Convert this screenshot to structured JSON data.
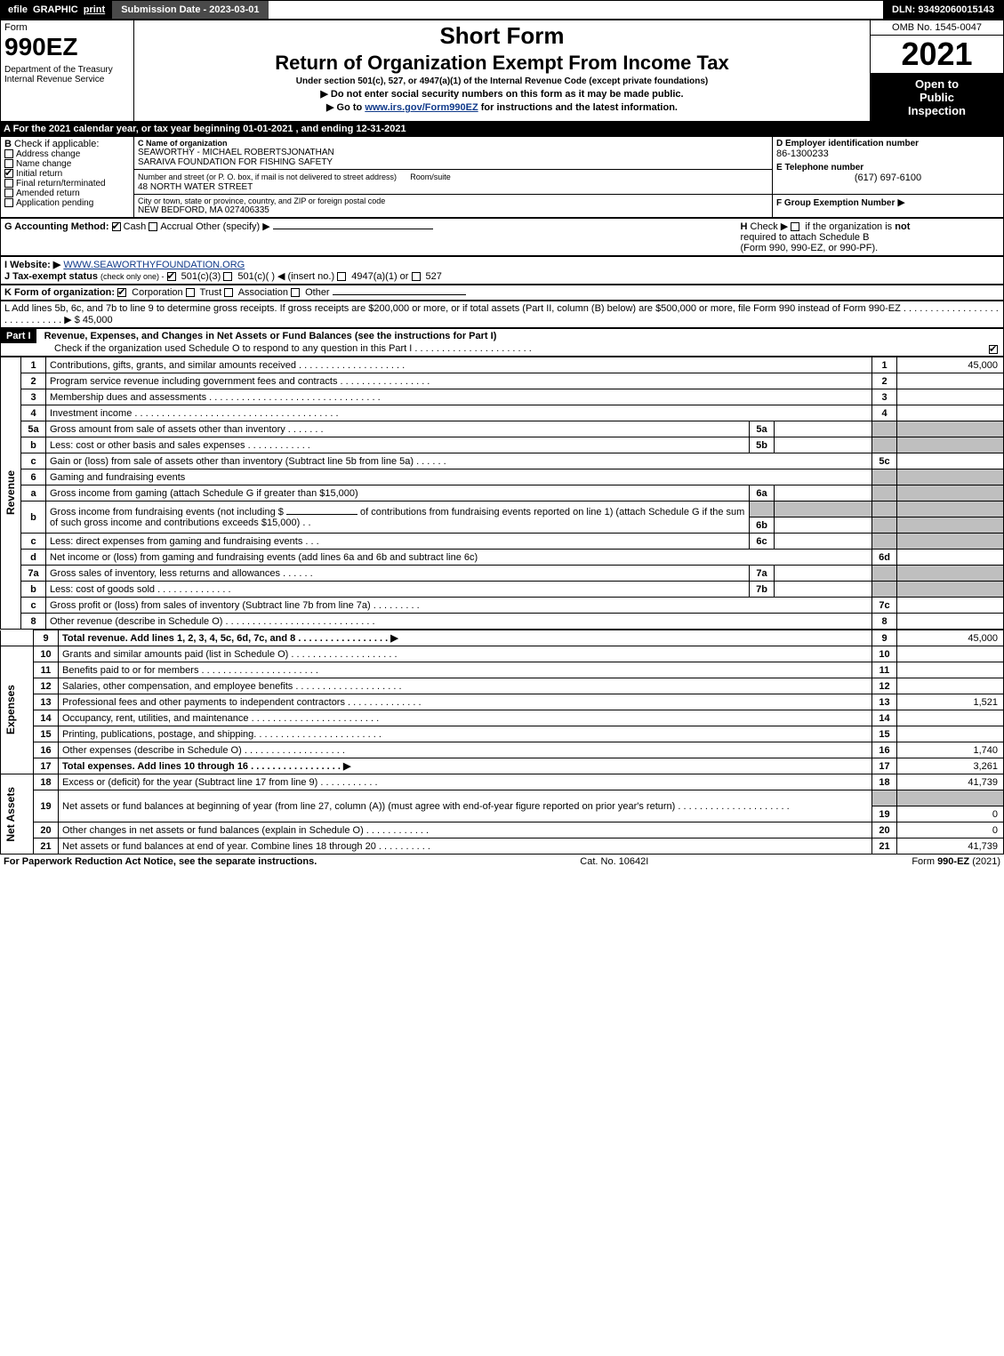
{
  "topbar": {
    "efile": "efile",
    "graphic": "GRAPHIC",
    "print": "print",
    "submission_label": "Submission Date - 2023-03-01",
    "dln": "DLN: 93492060015143"
  },
  "header": {
    "form_word": "Form",
    "form_no": "990EZ",
    "dept": "Department of the Treasury\nInternal Revenue Service",
    "short": "Short Form",
    "return": "Return of Organization Exempt From Income Tax",
    "under": "Under section 501(c), 527, or 4947(a)(1) of the Internal Revenue Code (except private foundations)",
    "inst1": "▶ Do not enter social security numbers on this form as it may be made public.",
    "inst2_pre": "▶ Go to ",
    "inst2_link": "www.irs.gov/Form990EZ",
    "inst2_post": " for instructions and the latest information.",
    "omb": "OMB No. 1545-0047",
    "year": "2021",
    "open1": "Open to",
    "open2": "Public",
    "open3": "Inspection"
  },
  "sectionA": {
    "A_text": "A  For the 2021 calendar year, or tax year beginning 01-01-2021 , and ending 12-31-2021",
    "B_label": "B",
    "B_check": "Check if applicable:",
    "B_items": [
      {
        "label": "Address change",
        "checked": false
      },
      {
        "label": "Name change",
        "checked": false
      },
      {
        "label": "Initial return",
        "checked": true
      },
      {
        "label": "Final return/terminated",
        "checked": false
      },
      {
        "label": "Amended return",
        "checked": false
      },
      {
        "label": "Application pending",
        "checked": false
      }
    ],
    "C_label": "C Name of organization",
    "C_name": "SEAWORTHY - MICHAEL ROBERTSJONATHAN\nSARAIVA FOUNDATION FOR FISHING SAFETY",
    "C_addr_label": "Number and street (or P. O. box, if mail is not delivered to street address)",
    "C_room": "Room/suite",
    "C_addr": "48 NORTH WATER STREET",
    "C_city_label": "City or town, state or province, country, and ZIP or foreign postal code",
    "C_city": "NEW BEDFORD, MA  027406335",
    "D_label": "D Employer identification number",
    "D_val": "86-1300233",
    "E_label": "E Telephone number",
    "E_val": "(617) 697-6100",
    "F_label": "F Group Exemption Number",
    "F_arrow": "▶",
    "G_label": "G Accounting Method:",
    "G_cash": "Cash",
    "G_accrual": "Accrual",
    "G_other": "Other (specify) ▶",
    "H_label": "H",
    "H_text1": "Check ▶",
    "H_text2": "if the organization is",
    "H_not": "not",
    "H_text3": "required to attach Schedule B",
    "H_text4": "(Form 990, 990-EZ, or 990-PF).",
    "I_label": "I Website: ▶",
    "I_val": "WWW.SEAWORTHYFOUNDATION.ORG",
    "J_label": "J Tax-exempt status",
    "J_sub": "(check only one) -",
    "J_items": [
      "501(c)(3)",
      "501(c)(    ) ◀ (insert no.)",
      "4947(a)(1) or",
      "527"
    ],
    "K_label": "K Form of organization:",
    "K_items": [
      "Corporation",
      "Trust",
      "Association",
      "Other"
    ],
    "L_text": "L Add lines 5b, 6c, and 7b to line 9 to determine gross receipts. If gross receipts are $200,000 or more, or if total assets (Part II, column (B) below) are $500,000 or more, file Form 990 instead of Form 990-EZ . . . . . . . . . . . . . . . . . . . . . . . . . . . . . ▶ $ 45,000"
  },
  "partI": {
    "hdr": "Part I",
    "title": "Revenue, Expenses, and Changes in Net Assets or Fund Balances (see the instructions for Part I)",
    "check_text": "Check if the organization used Schedule O to respond to any question in this Part I . . . . . . . . . . . . . . . . . . . . . .",
    "rev_label": "Revenue",
    "exp_label": "Expenses",
    "na_label": "Net Assets",
    "lines": {
      "1": {
        "n": "1",
        "txt": "Contributions, gifts, grants, and similar amounts received . . . . . . . . . . . . . . . . . . . .",
        "rn": "1",
        "val": "45,000"
      },
      "2": {
        "n": "2",
        "txt": "Program service revenue including government fees and contracts . . . . . . . . . . . . . . . . .",
        "rn": "2",
        "val": ""
      },
      "3": {
        "n": "3",
        "txt": "Membership dues and assessments . . . . . . . . . . . . . . . . . . . . . . . . . . . . . . . .",
        "rn": "3",
        "val": ""
      },
      "4": {
        "n": "4",
        "txt": "Investment income . . . . . . . . . . . . . . . . . . . . . . . . . . . . . . . . . . . . . .",
        "rn": "4",
        "val": ""
      },
      "5a": {
        "n": "5a",
        "txt": "Gross amount from sale of assets other than inventory . . . . . . .",
        "box": "5a"
      },
      "5b": {
        "n": "b",
        "txt": "Less: cost or other basis and sales expenses . . . . . . . . . . . .",
        "box": "5b"
      },
      "5c": {
        "n": "c",
        "txt": "Gain or (loss) from sale of assets other than inventory (Subtract line 5b from line 5a) . . . . . .",
        "rn": "5c",
        "val": ""
      },
      "6": {
        "n": "6",
        "txt": "Gaming and fundraising events"
      },
      "6a": {
        "n": "a",
        "txt": "Gross income from gaming (attach Schedule G if greater than $15,000)",
        "box": "6a"
      },
      "6b": {
        "n": "b",
        "txt": "Gross income from fundraising events (not including $",
        "txt2": "of contributions from fundraising events reported on line 1) (attach Schedule G if the sum of such gross income and contributions exceeds $15,000)   .  .",
        "box": "6b"
      },
      "6c": {
        "n": "c",
        "txt": "Less: direct expenses from gaming and fundraising events    .  .  .",
        "box": "6c"
      },
      "6d": {
        "n": "d",
        "txt": "Net income or (loss) from gaming and fundraising events (add lines 6a and 6b and subtract line 6c)",
        "rn": "6d",
        "val": ""
      },
      "7a": {
        "n": "7a",
        "txt": "Gross sales of inventory, less returns and allowances . . . . . .",
        "box": "7a"
      },
      "7b": {
        "n": "b",
        "txt": "Less: cost of goods sold       .   .   .   .   .   .   .   .   .   .   .   .   .   .",
        "box": "7b"
      },
      "7c": {
        "n": "c",
        "txt": "Gross profit or (loss) from sales of inventory (Subtract line 7b from line 7a) . . . . . . . . .",
        "rn": "7c",
        "val": ""
      },
      "8": {
        "n": "8",
        "txt": "Other revenue (describe in Schedule O) . . . . . . . . . . . . . . . . . . . . . . . . . . . .",
        "rn": "8",
        "val": ""
      },
      "9": {
        "n": "9",
        "txt": "Total revenue. Add lines 1, 2, 3, 4, 5c, 6d, 7c, and 8  . . . . . . . . . . . . . . . . .   ▶",
        "rn": "9",
        "val": "45,000",
        "bold": true
      },
      "10": {
        "n": "10",
        "txt": "Grants and similar amounts paid (list in Schedule O) . . . . . . . . . . . . . . . . . . . .",
        "rn": "10",
        "val": ""
      },
      "11": {
        "n": "11",
        "txt": "Benefits paid to or for members      .   .   .   .   .   .   .   .   .   .   .   .   .   .   .   .   .   .   .   .   .   .",
        "rn": "11",
        "val": ""
      },
      "12": {
        "n": "12",
        "txt": "Salaries, other compensation, and employee benefits . . . . . . . . . . . . . . . . . . . .",
        "rn": "12",
        "val": ""
      },
      "13": {
        "n": "13",
        "txt": "Professional fees and other payments to independent contractors . . . . . . . . . . . . . .",
        "rn": "13",
        "val": "1,521"
      },
      "14": {
        "n": "14",
        "txt": "Occupancy, rent, utilities, and maintenance . . . . . . . . . . . . . . . . . . . . . . . .",
        "rn": "14",
        "val": ""
      },
      "15": {
        "n": "15",
        "txt": "Printing, publications, postage, and shipping. . . . . . . . . . . . . . . . . . . . . . . .",
        "rn": "15",
        "val": ""
      },
      "16": {
        "n": "16",
        "txt": "Other expenses (describe in Schedule O)    .   .   .   .   .   .   .   .   .   .   .   .   .   .   .   .   .   .   .",
        "rn": "16",
        "val": "1,740"
      },
      "17": {
        "n": "17",
        "txt": "Total expenses. Add lines 10 through 16     .   .   .   .   .   .   .   .   .   .   .   .   .   .   .   .   .   ▶",
        "rn": "17",
        "val": "3,261",
        "bold": true
      },
      "18": {
        "n": "18",
        "txt": "Excess or (deficit) for the year (Subtract line 17 from line 9)        .   .   .   .   .   .   .   .   .   .   .",
        "rn": "18",
        "val": "41,739"
      },
      "19": {
        "n": "19",
        "txt": "Net assets or fund balances at beginning of year (from line 27, column (A)) (must agree with end-of-year figure reported on prior year's return) . . . . . . . . . . . . . . . . . . . . .",
        "rn": "19",
        "val": "0"
      },
      "20": {
        "n": "20",
        "txt": "Other changes in net assets or fund balances (explain in Schedule O) . . . . . . . . . . . .",
        "rn": "20",
        "val": "0"
      },
      "21": {
        "n": "21",
        "txt": "Net assets or fund balances at end of year. Combine lines 18 through 20 . . . . . . . . . .",
        "rn": "21",
        "val": "41,739"
      }
    }
  },
  "footer": {
    "left": "For Paperwork Reduction Act Notice, see the separate instructions.",
    "mid": "Cat. No. 10642I",
    "right_pre": "Form ",
    "right_form": "990-EZ",
    "right_post": " (2021)"
  },
  "colors": {
    "black": "#000000",
    "white": "#ffffff",
    "darkgrey": "#4a4a4a",
    "grey_cell": "#bfbfbf",
    "link": "#103a8a"
  }
}
